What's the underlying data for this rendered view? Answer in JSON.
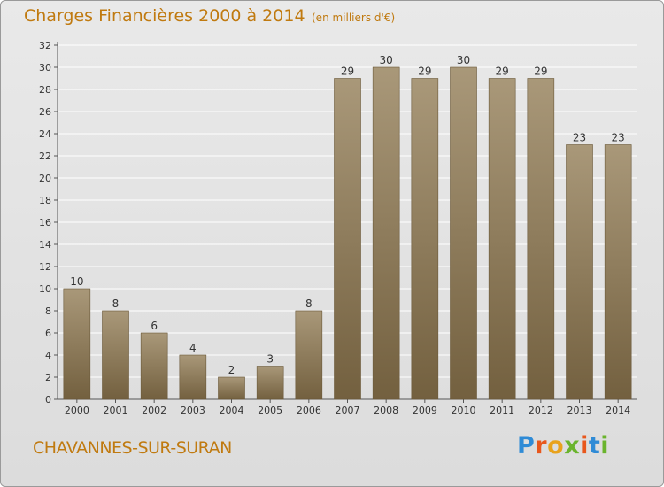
{
  "header": {
    "title": "Charges Financières 2000 à 2014",
    "unit": "(en milliers d'€)"
  },
  "footer": {
    "commune": "CHAVANNES-SUR-SURAN",
    "logo_text": "Proxiti"
  },
  "colors": {
    "bar_top": "#a99879",
    "bar_bottom": "#73603f",
    "title": "#c07a10",
    "logo": [
      "#2f8bd6",
      "#e8571c",
      "#e8a21c",
      "#6ab42d",
      "#e8571c",
      "#2f8bd6",
      "#6ab42d"
    ]
  },
  "chart_data": {
    "type": "bar",
    "categories": [
      "2000",
      "2001",
      "2002",
      "2003",
      "2004",
      "2005",
      "2006",
      "2007",
      "2008",
      "2009",
      "2010",
      "2011",
      "2012",
      "2013",
      "2014"
    ],
    "values": [
      10,
      8,
      6,
      4,
      2,
      3,
      8,
      29,
      30,
      29,
      30,
      29,
      29,
      23,
      23
    ],
    "data_labels": [
      "10",
      "8",
      "6",
      "4",
      "2",
      "3",
      "8",
      "29",
      "30",
      "29",
      "30",
      "29",
      "29",
      "23",
      "23"
    ],
    "title": "Charges Financières 2000 à 2014",
    "subtitle": "(en milliers d'€)",
    "xlabel": "",
    "ylabel": "",
    "ylim": [
      0,
      32
    ],
    "yticks": [
      0,
      2,
      4,
      6,
      8,
      10,
      12,
      14,
      16,
      18,
      20,
      22,
      24,
      26,
      28,
      30,
      32
    ],
    "ytick_labels": [
      "0",
      "2",
      "4",
      "6",
      "8",
      "10",
      "12",
      "14",
      "16",
      "18",
      "20",
      "22",
      "24",
      "26",
      "28",
      "30",
      "32"
    ],
    "grid": true,
    "legend": "none"
  }
}
